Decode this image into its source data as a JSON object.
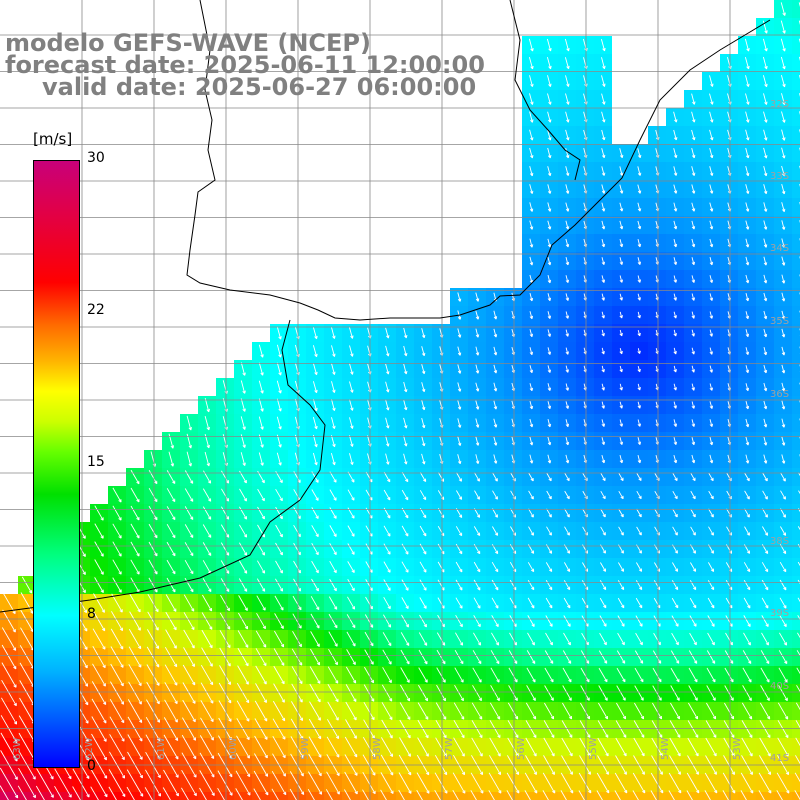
{
  "title": {
    "line1": "modelo GEFS-WAVE (NCEP)",
    "line2": "forecast date: 2025-06-11 12:00:00",
    "line3": "valid date: 2025-06-27 06:00:00"
  },
  "colorbar": {
    "unit": "[m/s]",
    "ticks": [
      "30",
      "22",
      "15",
      "8",
      "0"
    ],
    "min": 0,
    "max": 30,
    "colors": [
      "#0000ff",
      "#0050ff",
      "#00b4ff",
      "#00ffff",
      "#00ff7f",
      "#00e000",
      "#66ff00",
      "#ffff00",
      "#ff6a00",
      "#ff0000",
      "#c8007a"
    ]
  },
  "map": {
    "lat_labels": [
      "32S",
      "33S",
      "34S",
      "35S",
      "36S",
      "38S",
      "39S",
      "40S",
      "41S"
    ],
    "lon_labels": [
      "63W",
      "62W",
      "61W",
      "60W",
      "59W",
      "58W",
      "57W",
      "56W",
      "55W",
      "54W",
      "53W"
    ],
    "grid": "on",
    "land_color": "#ffffff",
    "coastline_color": "#000000",
    "arrow_color": "#ffffff"
  }
}
